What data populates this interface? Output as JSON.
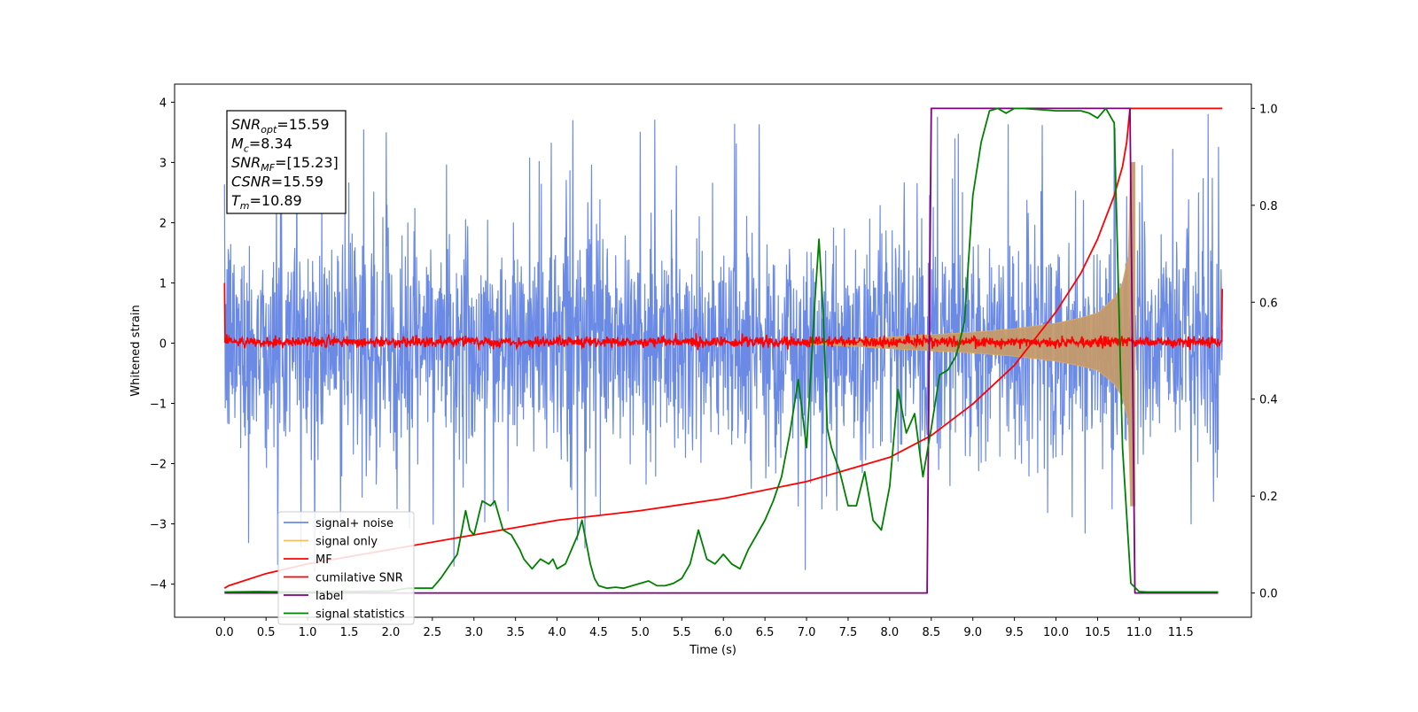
{
  "chart_data": {
    "type": "line",
    "title": "",
    "xlabel": "Time (s)",
    "ylabel": "Whitened strain",
    "y2label": "",
    "xlim": [
      -0.6,
      12.35
    ],
    "ylim": [
      -4.55,
      4.3
    ],
    "y2lim": [
      -0.05,
      1.05
    ],
    "x_ticks": [
      0.0,
      0.5,
      1.0,
      1.5,
      2.0,
      2.5,
      3.0,
      3.5,
      4.0,
      4.5,
      5.0,
      5.5,
      6.0,
      6.5,
      7.0,
      7.5,
      8.0,
      8.5,
      9.0,
      9.5,
      10.0,
      10.5,
      11.0,
      11.5
    ],
    "x_tick_labels": [
      "0.0",
      "0.5",
      "1.0",
      "1.5",
      "2.0",
      "2.5",
      "3.0",
      "3.5",
      "4.0",
      "4.5",
      "5.0",
      "5.5",
      "6.0",
      "6.5",
      "7.0",
      "7.5",
      "8.0",
      "8.5",
      "9.0",
      "9.5",
      "10.0",
      "10.5",
      "11.0",
      "11.5"
    ],
    "y_ticks": [
      -4,
      -3,
      -2,
      -1,
      0,
      1,
      2,
      3,
      4
    ],
    "y_tick_labels": [
      "−4",
      "−3",
      "−2",
      "−1",
      "0",
      "1",
      "2",
      "3",
      "4"
    ],
    "y2_ticks": [
      0.0,
      0.2,
      0.4,
      0.6,
      0.8,
      1.0
    ],
    "y2_tick_labels": [
      "0.0",
      "0.2",
      "0.4",
      "0.6",
      "0.8",
      "1.0"
    ],
    "grid": false,
    "legend_placement": "lower-left",
    "annotation": {
      "lines": [
        {
          "main": "SNR",
          "sub": "opt",
          "value": "=15.59"
        },
        {
          "main": "M",
          "sub": "c",
          "value": "=8.34"
        },
        {
          "main": "SNR",
          "sub": "MF",
          "value": "=[15.23]"
        },
        {
          "main": "CSNR",
          "sub": "",
          "value": "=15.59"
        },
        {
          "main": "T",
          "sub": "m",
          "value": "=10.89"
        }
      ]
    },
    "series": [
      {
        "name": "signal+ noise",
        "axis": "left",
        "color": "#6a8ae6",
        "kind": "noise-band",
        "t_start": 0.0,
        "t_end": 12.0,
        "typical_range": [
          -2.0,
          2.0
        ],
        "max_value": 4.0,
        "min_value": -4.15
      },
      {
        "name": "signal only",
        "axis": "left",
        "color": "#f0c060",
        "kind": "chirp-envelope",
        "t_start": 7.0,
        "t_end": 10.95,
        "envelope": {
          "t": [
            7.0,
            7.5,
            8.0,
            8.5,
            9.0,
            9.5,
            10.0,
            10.3,
            10.5,
            10.7,
            10.8,
            10.88,
            10.89
          ],
          "amp": [
            0.02,
            0.05,
            0.1,
            0.14,
            0.18,
            0.24,
            0.33,
            0.42,
            0.5,
            0.75,
            1.0,
            1.5,
            3.0
          ]
        }
      },
      {
        "name": "MF",
        "axis": "left",
        "color": "#ff0000",
        "kind": "noise-band",
        "t_start": 0.0,
        "t_end": 12.0,
        "typical_range": [
          -0.1,
          0.15
        ],
        "edge_start": 1.0,
        "edge_end": 0.9
      },
      {
        "name": "cumilative SNR",
        "axis": "right",
        "color": "#ff0000",
        "kind": "line",
        "x": [
          0.0,
          0.05,
          0.5,
          1.0,
          2.0,
          3.0,
          4.0,
          5.0,
          6.0,
          7.0,
          7.5,
          8.0,
          8.5,
          9.0,
          9.5,
          10.0,
          10.3,
          10.5,
          10.7,
          10.8,
          10.85,
          10.89,
          12.0
        ],
        "y": [
          0.01,
          0.015,
          0.04,
          0.06,
          0.09,
          0.12,
          0.15,
          0.17,
          0.195,
          0.23,
          0.255,
          0.28,
          0.325,
          0.39,
          0.47,
          0.58,
          0.66,
          0.73,
          0.82,
          0.88,
          0.93,
          1.0,
          1.0
        ]
      },
      {
        "name": "label",
        "axis": "right",
        "color": "#800080",
        "kind": "line",
        "x": [
          0.0,
          8.45,
          8.5,
          10.89,
          10.95,
          11.95
        ],
        "y": [
          0.0,
          0.0,
          1.0,
          1.0,
          0.0,
          0.0
        ]
      },
      {
        "name": "signal statistics",
        "axis": "right",
        "color": "#008000",
        "kind": "line",
        "x": [
          0.0,
          0.4,
          1.0,
          1.5,
          2.0,
          2.2,
          2.5,
          2.6,
          2.8,
          2.9,
          2.95,
          3.0,
          3.1,
          3.2,
          3.25,
          3.35,
          3.45,
          3.55,
          3.6,
          3.7,
          3.8,
          3.9,
          3.95,
          4.0,
          4.1,
          4.2,
          4.25,
          4.3,
          4.4,
          4.45,
          4.5,
          4.6,
          4.7,
          4.8,
          5.0,
          5.1,
          5.2,
          5.3,
          5.4,
          5.5,
          5.6,
          5.7,
          5.8,
          5.9,
          6.0,
          6.1,
          6.2,
          6.3,
          6.4,
          6.5,
          6.6,
          6.7,
          6.8,
          6.9,
          7.0,
          7.1,
          7.15,
          7.2,
          7.25,
          7.3,
          7.4,
          7.5,
          7.6,
          7.7,
          7.8,
          7.9,
          8.0,
          8.1,
          8.2,
          8.3,
          8.4,
          8.5,
          8.6,
          8.7,
          8.8,
          8.9,
          9.0,
          9.1,
          9.2,
          9.3,
          9.4,
          9.5,
          9.6,
          10.0,
          10.3,
          10.4,
          10.5,
          10.6,
          10.7,
          10.8,
          10.9,
          11.0,
          11.1,
          11.95
        ],
        "y": [
          0.002,
          0.003,
          0.002,
          0.003,
          0.004,
          0.01,
          0.01,
          0.03,
          0.08,
          0.17,
          0.13,
          0.12,
          0.19,
          0.18,
          0.19,
          0.13,
          0.12,
          0.09,
          0.07,
          0.05,
          0.07,
          0.06,
          0.07,
          0.05,
          0.06,
          0.1,
          0.12,
          0.15,
          0.06,
          0.03,
          0.015,
          0.01,
          0.012,
          0.01,
          0.02,
          0.025,
          0.015,
          0.015,
          0.02,
          0.03,
          0.06,
          0.13,
          0.07,
          0.06,
          0.08,
          0.06,
          0.05,
          0.09,
          0.12,
          0.15,
          0.19,
          0.24,
          0.33,
          0.44,
          0.3,
          0.6,
          0.73,
          0.58,
          0.34,
          0.3,
          0.25,
          0.18,
          0.18,
          0.25,
          0.15,
          0.13,
          0.22,
          0.42,
          0.33,
          0.37,
          0.24,
          0.34,
          0.45,
          0.46,
          0.49,
          0.56,
          0.82,
          0.93,
          0.995,
          1.0,
          0.99,
          1.0,
          1.0,
          0.995,
          0.995,
          0.99,
          0.98,
          1.0,
          0.97,
          0.3,
          0.02,
          0.003,
          0.002,
          0.002
        ]
      }
    ]
  }
}
